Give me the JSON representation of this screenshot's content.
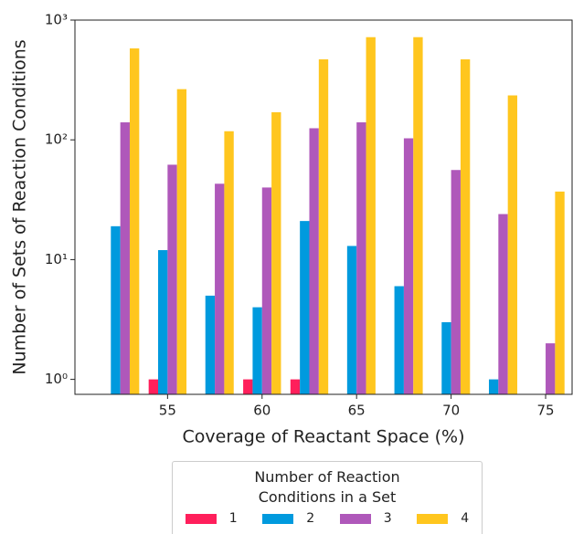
{
  "chart_data": {
    "type": "bar",
    "log_y": true,
    "x_label": "Coverage of Reactant Space (%)",
    "y_label": "Number of Sets of Reaction Conditions",
    "x": [
      52.5,
      55,
      57.5,
      60,
      62.5,
      65,
      67.5,
      70,
      72.5,
      75
    ],
    "xlim": [
      50.1,
      76.4
    ],
    "xticks": [
      55,
      60,
      65,
      70,
      75
    ],
    "ylim": [
      0.75,
      1000
    ],
    "yticks": [
      {
        "value": 1,
        "label": "10⁰"
      },
      {
        "value": 10,
        "label": "10¹"
      },
      {
        "value": 100,
        "label": "10²"
      },
      {
        "value": 1000,
        "label": "10³"
      }
    ],
    "bar_width": 0.5,
    "legend_title": "Number of Reaction\nConditions in a Set",
    "series": [
      {
        "name": "1",
        "color": "#ff1f5b",
        "values": [
          null,
          1,
          null,
          1,
          1,
          null,
          null,
          null,
          null,
          null
        ]
      },
      {
        "name": "2",
        "color": "#009ade",
        "values": [
          19,
          12,
          5,
          4,
          21,
          13,
          6,
          3,
          1,
          null
        ]
      },
      {
        "name": "3",
        "color": "#af58ba",
        "values": [
          140,
          62,
          43,
          40,
          125,
          140,
          103,
          56,
          24,
          2
        ]
      },
      {
        "name": "4",
        "color": "#ffc61e",
        "values": [
          580,
          265,
          118,
          170,
          470,
          720,
          720,
          470,
          235,
          37
        ]
      }
    ]
  }
}
